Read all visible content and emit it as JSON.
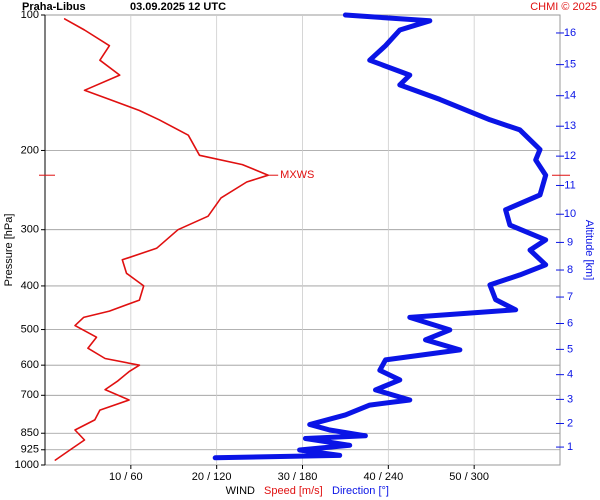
{
  "chart_data": {
    "type": "line",
    "title": "Praha-Libus",
    "subtitle": "03.09.2025 12 UTC",
    "credit": "CHMI © 2025",
    "xlabel": "WIND",
    "ylabel": "Pressure [hPa]",
    "y2label": "Altitude [km]",
    "log_y": true,
    "grid": true,
    "xlim": [
      0,
      60
    ],
    "x2lim": [
      0,
      360
    ],
    "xticks": [
      {
        "value": 10,
        "label": "10 / 60"
      },
      {
        "value": 20,
        "label": "20 / 120"
      },
      {
        "value": 30,
        "label": "30 / 180"
      },
      {
        "value": 40,
        "label": "40 / 240"
      },
      {
        "value": 50,
        "label": "50 / 300"
      }
    ],
    "ylim": [
      1000,
      100
    ],
    "yticks": [
      100,
      200,
      300,
      400,
      500,
      600,
      700,
      850,
      925,
      1000
    ],
    "y2ticks": [
      1,
      2,
      3,
      4,
      5,
      6,
      7,
      8,
      9,
      10,
      11,
      12,
      13,
      14,
      15,
      16
    ],
    "annotations": [
      {
        "text": "MXWS",
        "pressure": 227,
        "speed": 26
      }
    ],
    "series": [
      {
        "name": "Speed [m/s]",
        "color": "#e01010",
        "y": [
          975,
          926,
          880,
          836,
          794,
          755,
          717,
          680,
          650,
          620,
          600,
          580,
          550,
          520,
          490,
          470,
          455,
          430,
          400,
          375,
          350,
          330,
          300,
          280,
          255,
          235,
          227,
          215,
          205,
          185,
          171,
          163,
          154,
          147,
          136,
          126,
          117,
          108,
          102
        ],
        "values": [
          1.2,
          2.9,
          4.6,
          3.5,
          5.8,
          6.4,
          9.8,
          7.0,
          8.5,
          9.8,
          11.0,
          7.0,
          5.0,
          6.0,
          3.5,
          4.5,
          7.5,
          11.0,
          11.5,
          9.5,
          9.0,
          13.0,
          15.5,
          19.0,
          20.5,
          23.5,
          26.0,
          23.0,
          18.0,
          16.7,
          13.3,
          11.0,
          7.5,
          4.6,
          8.7,
          6.4,
          7.5,
          4.6,
          2.3
        ]
      },
      {
        "name": "Direction [°]",
        "color": "#0a14e6",
        "axis": "x2",
        "y": [
          964,
          952,
          926,
          904,
          873,
          861,
          836,
          813,
          774,
          736,
          717,
          681,
          647,
          616,
          584,
          555,
          527,
          501,
          470,
          452,
          429,
          398,
          378,
          359,
          333,
          316,
          293,
          271,
          251,
          227,
          210,
          199,
          180,
          171,
          154,
          143,
          136,
          126,
          117,
          108,
          103,
          100
        ],
        "values": [
          119,
          206,
          178,
          213,
          182,
          224,
          199,
          185,
          210,
          227,
          255,
          231,
          248,
          234,
          238,
          290,
          266,
          283,
          255,
          329,
          315,
          311,
          332,
          350,
          339,
          350,
          325,
          322,
          346,
          350,
          343,
          346,
          332,
          311,
          276,
          248,
          255,
          227,
          238,
          248,
          269,
          210
        ]
      }
    ]
  }
}
